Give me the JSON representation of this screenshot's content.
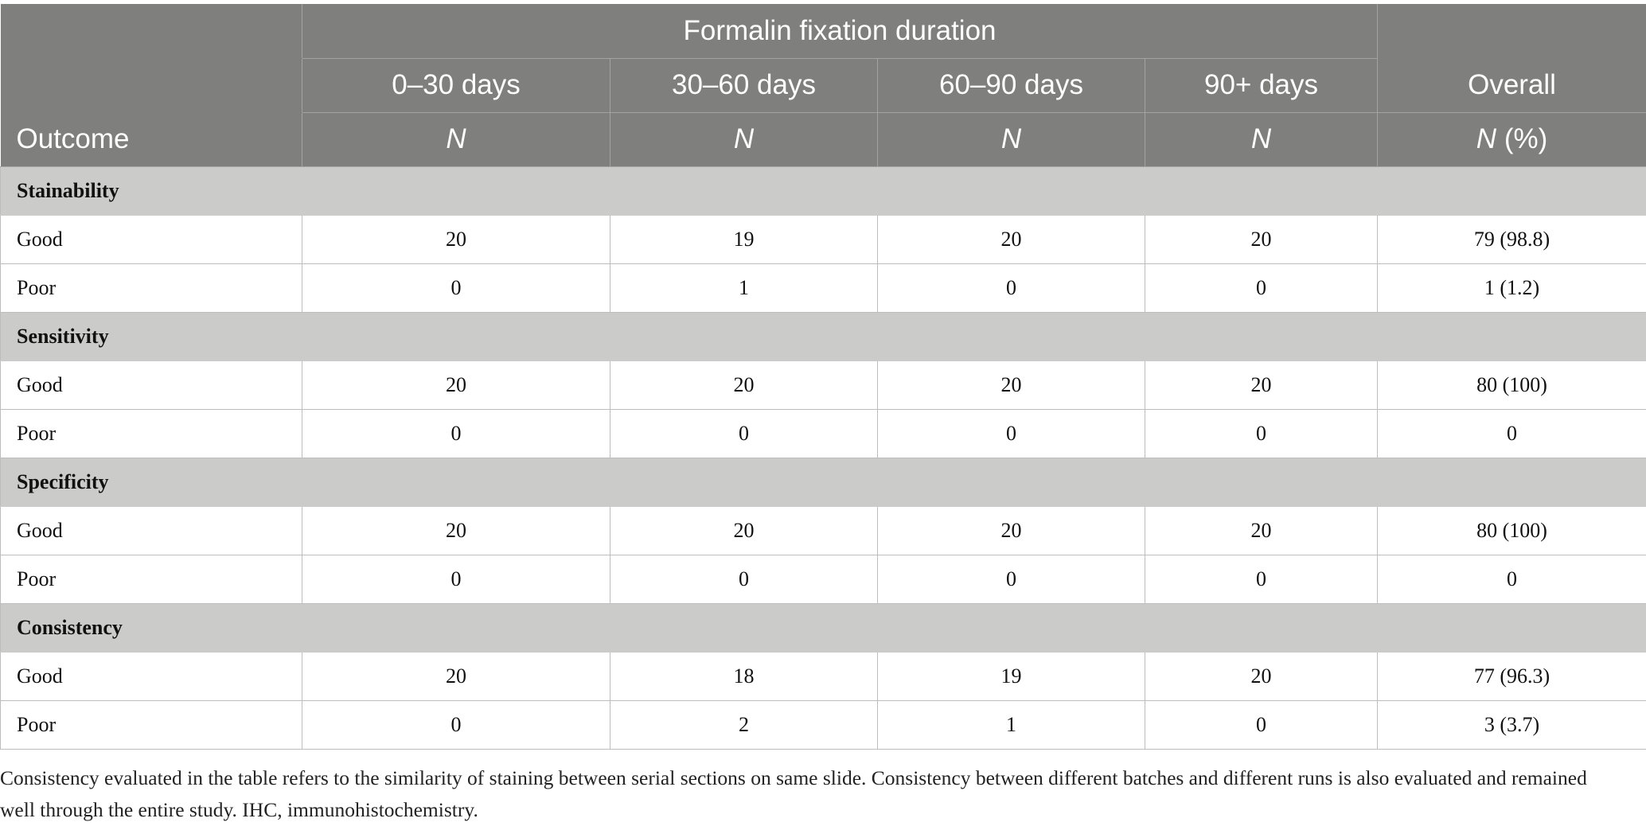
{
  "table": {
    "group_header": "Formalin fixation duration",
    "columns": [
      "0–30 days",
      "30–60 days",
      "60–90 days",
      "90+ days",
      "Overall"
    ],
    "outcome_label": "Outcome",
    "sub_n": "N",
    "sub_overall_pct": "(%)",
    "sections": [
      {
        "title": "Stainability",
        "rows": [
          {
            "label": "Good",
            "values": [
              "20",
              "19",
              "20",
              "20",
              "79 (98.8)"
            ]
          },
          {
            "label": "Poor",
            "values": [
              "0",
              "1",
              "0",
              "0",
              "1 (1.2)"
            ]
          }
        ]
      },
      {
        "title": "Sensitivity",
        "rows": [
          {
            "label": "Good",
            "values": [
              "20",
              "20",
              "20",
              "20",
              "80 (100)"
            ]
          },
          {
            "label": "Poor",
            "values": [
              "0",
              "0",
              "0",
              "0",
              "0"
            ]
          }
        ]
      },
      {
        "title": "Specificity",
        "rows": [
          {
            "label": "Good",
            "values": [
              "20",
              "20",
              "20",
              "20",
              "80 (100)"
            ]
          },
          {
            "label": "Poor",
            "values": [
              "0",
              "0",
              "0",
              "0",
              "0"
            ]
          }
        ]
      },
      {
        "title": "Consistency",
        "rows": [
          {
            "label": "Good",
            "values": [
              "20",
              "18",
              "19",
              "20",
              "77 (96.3)"
            ]
          },
          {
            "label": "Poor",
            "values": [
              "0",
              "2",
              "1",
              "0",
              "3 (3.7)"
            ]
          }
        ]
      }
    ]
  },
  "footnote": "Consistency evaluated in the table refers to the similarity of staining between serial sections on same slide. Consistency between different batches and different runs is also evaluated and remained well through the entire study. IHC, immunohistochemistry."
}
